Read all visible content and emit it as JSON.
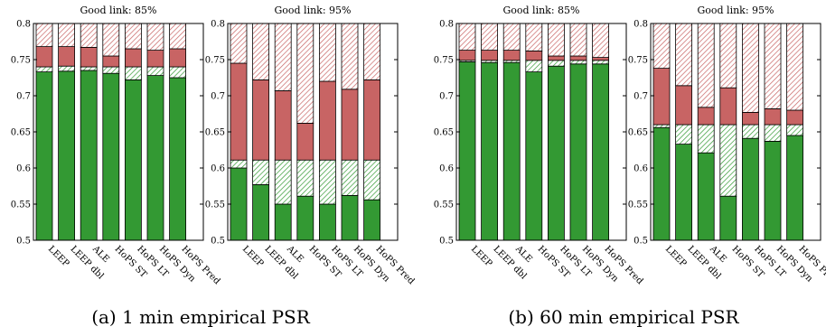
{
  "captions": [
    "(a) 1 min empirical PSR",
    "(b) 60 min empirical PSR"
  ],
  "colors": {
    "green": "#339933",
    "red": "#c86464",
    "green_hatch": "#339933",
    "red_hatch": "#c86464",
    "outline": "#000000"
  },
  "chart_data": [
    {
      "type": "bar",
      "stacking": "stacked",
      "title": "Good link: 85%",
      "ylim": [
        0.5,
        0.8
      ],
      "yticks": [
        "0.5",
        "0.55",
        "0.6",
        "0.65",
        "0.7",
        "0.75",
        "0.8"
      ],
      "categories": [
        "LEEP",
        "LEEP dbl",
        "ALE",
        "HoPS ST",
        "HoPS LT",
        "HoPS Dyn",
        "HoPS Pred"
      ],
      "segment_boundaries": {
        "green_top": [
          0.733,
          0.734,
          0.735,
          0.731,
          0.722,
          0.728,
          0.725
        ],
        "green_hatch_top": [
          0.74,
          0.741,
          0.74,
          0.74,
          0.74,
          0.74,
          0.74
        ],
        "red_top": [
          0.768,
          0.768,
          0.767,
          0.755,
          0.765,
          0.763,
          0.765
        ],
        "red_hatch_top": [
          0.8,
          0.8,
          0.8,
          0.8,
          0.8,
          0.8,
          0.8
        ]
      }
    },
    {
      "type": "bar",
      "stacking": "stacked",
      "title": "Good link: 95%",
      "ylim": [
        0.5,
        0.8
      ],
      "yticks": [
        "0.5",
        "0.55",
        "0.6",
        "0.65",
        "0.7",
        "0.75",
        "0.8"
      ],
      "categories": [
        "LEEP",
        "LEEP dbl",
        "ALE",
        "HoPS ST",
        "HoPS LT",
        "HoPS Dyn",
        "HoPS Pred"
      ],
      "segment_boundaries": {
        "green_top": [
          0.6,
          0.577,
          0.55,
          0.561,
          0.55,
          0.562,
          0.556
        ],
        "green_hatch_top": [
          0.611,
          0.611,
          0.611,
          0.611,
          0.611,
          0.611,
          0.611
        ],
        "red_top": [
          0.745,
          0.722,
          0.707,
          0.662,
          0.72,
          0.709,
          0.722
        ],
        "red_hatch_top": [
          0.8,
          0.8,
          0.8,
          0.8,
          0.8,
          0.8,
          0.8
        ]
      }
    },
    {
      "type": "bar",
      "stacking": "stacked",
      "title": "Good link: 85%",
      "ylim": [
        0.5,
        0.8
      ],
      "yticks": [
        "0.5",
        "0.55",
        "0.6",
        "0.65",
        "0.7",
        "0.75",
        "0.8"
      ],
      "categories": [
        "LEEP",
        "LEEP dbl",
        "ALE",
        "HoPS ST",
        "HoPS LT",
        "HoPS Dyn",
        "HoPS Pred"
      ],
      "segment_boundaries": {
        "green_top": [
          0.747,
          0.746,
          0.746,
          0.733,
          0.741,
          0.744,
          0.744
        ],
        "green_hatch_top": [
          0.749,
          0.749,
          0.749,
          0.749,
          0.749,
          0.749,
          0.749
        ],
        "red_top": [
          0.763,
          0.763,
          0.763,
          0.762,
          0.755,
          0.755,
          0.753
        ],
        "red_hatch_top": [
          0.8,
          0.8,
          0.8,
          0.8,
          0.8,
          0.8,
          0.8
        ]
      }
    },
    {
      "type": "bar",
      "stacking": "stacked",
      "title": "Good link: 95%",
      "ylim": [
        0.5,
        0.8
      ],
      "yticks": [
        "0.5",
        "0.55",
        "0.6",
        "0.65",
        "0.7",
        "0.75",
        "0.8"
      ],
      "categories": [
        "LEEP",
        "LEEP dbl",
        "ALE",
        "HoPS ST",
        "HoPS LT",
        "HoPS Dyn",
        "HoPS Pred"
      ],
      "segment_boundaries": {
        "green_top": [
          0.656,
          0.633,
          0.621,
          0.561,
          0.641,
          0.637,
          0.645
        ],
        "green_hatch_top": [
          0.66,
          0.66,
          0.66,
          0.66,
          0.66,
          0.66,
          0.66
        ],
        "red_top": [
          0.738,
          0.714,
          0.684,
          0.711,
          0.677,
          0.682,
          0.68
        ],
        "red_hatch_top": [
          0.8,
          0.8,
          0.8,
          0.8,
          0.8,
          0.8,
          0.8
        ]
      }
    }
  ]
}
